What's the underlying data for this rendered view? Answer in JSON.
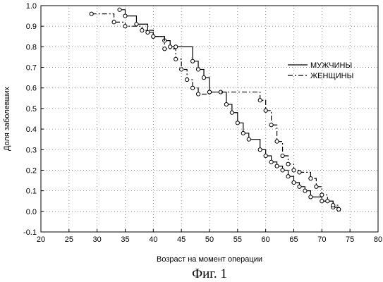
{
  "figure_caption": "Фиг. 1",
  "chart_data": {
    "type": "line",
    "xlabel": "Возраст на момент операции",
    "ylabel": "Доля заболевших",
    "xlim": [
      20,
      80
    ],
    "ylim": [
      -0.1,
      1.0
    ],
    "xticks": [
      20,
      25,
      30,
      35,
      40,
      45,
      50,
      55,
      60,
      65,
      70,
      75,
      80
    ],
    "yticks": [
      -0.1,
      0.0,
      0.1,
      0.2,
      0.3,
      0.4,
      0.5,
      0.6,
      0.7,
      0.8,
      0.9,
      1.0
    ],
    "grid": true,
    "legend_position": "right",
    "series": [
      {
        "name": "МУЖЧИНЫ",
        "style": "solid",
        "color": "#000000",
        "x": [
          34,
          35,
          37,
          39,
          40,
          42,
          43,
          44,
          47,
          48,
          49,
          50,
          52,
          53,
          54,
          55,
          56,
          57,
          59,
          60,
          61,
          62,
          63,
          64,
          65,
          66,
          67,
          68,
          70,
          72,
          73
        ],
        "y": [
          0.98,
          0.95,
          0.91,
          0.87,
          0.85,
          0.83,
          0.8,
          0.8,
          0.73,
          0.69,
          0.65,
          0.58,
          0.58,
          0.52,
          0.48,
          0.43,
          0.38,
          0.35,
          0.3,
          0.27,
          0.24,
          0.22,
          0.2,
          0.17,
          0.14,
          0.12,
          0.1,
          0.07,
          0.05,
          0.02,
          0.01
        ]
      },
      {
        "name": "ЖЕНЩИНЫ",
        "style": "dash-dot",
        "color": "#000000",
        "x": [
          29,
          33,
          35,
          38,
          40,
          42,
          44,
          45,
          46,
          47,
          48,
          50,
          59,
          60,
          61,
          62,
          63,
          64,
          65,
          66,
          68,
          69,
          70,
          71,
          72,
          73
        ],
        "y": [
          0.96,
          0.92,
          0.9,
          0.88,
          0.85,
          0.79,
          0.74,
          0.69,
          0.64,
          0.6,
          0.57,
          0.58,
          0.54,
          0.49,
          0.42,
          0.34,
          0.27,
          0.23,
          0.2,
          0.19,
          0.16,
          0.12,
          0.08,
          0.05,
          0.03,
          0.01
        ]
      }
    ]
  }
}
